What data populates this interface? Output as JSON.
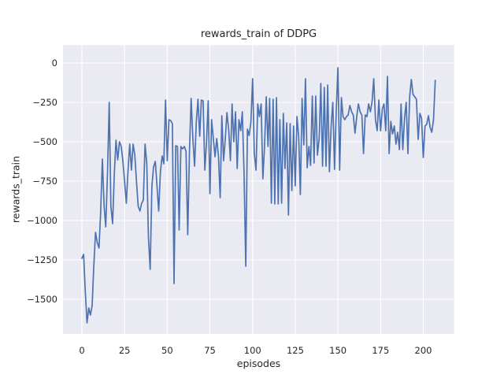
{
  "chart_data": {
    "type": "line",
    "title": "rewards_train of DDPG",
    "xlabel": "episodes",
    "ylabel": "rewards_train",
    "x_ticks": [
      0,
      25,
      50,
      75,
      100,
      125,
      150,
      175,
      200
    ],
    "y_ticks": [
      0,
      -250,
      -500,
      -750,
      -1000,
      -1250,
      -1500
    ],
    "xlim": [
      -11,
      218
    ],
    "ylim": [
      -1720,
      112
    ],
    "grid": true,
    "legend_position": "none",
    "line_color": "#4c72b0",
    "axes_background": "#eaeaf2",
    "grid_color": "#ffffff",
    "text_color": "#262626",
    "series": [
      {
        "name": "rewards_train",
        "x_start": 0,
        "x_step": 1,
        "values": [
          -1240,
          -1215,
          -1450,
          -1650,
          -1555,
          -1600,
          -1540,
          -1280,
          -1075,
          -1140,
          -1175,
          -950,
          -610,
          -910,
          -1040,
          -700,
          -250,
          -910,
          -1020,
          -700,
          -490,
          -615,
          -500,
          -530,
          -620,
          -750,
          -890,
          -690,
          -515,
          -680,
          -515,
          -585,
          -760,
          -910,
          -940,
          -890,
          -870,
          -515,
          -640,
          -1110,
          -1310,
          -780,
          -660,
          -625,
          -780,
          -940,
          -690,
          -590,
          -640,
          -235,
          -620,
          -360,
          -365,
          -385,
          -1400,
          -525,
          -530,
          -1060,
          -530,
          -545,
          -530,
          -560,
          -1090,
          -560,
          -225,
          -480,
          -655,
          -380,
          -230,
          -465,
          -235,
          -240,
          -680,
          -505,
          -240,
          -830,
          -360,
          -480,
          -595,
          -480,
          -590,
          -855,
          -335,
          -620,
          -480,
          -315,
          -425,
          -620,
          -260,
          -500,
          -310,
          -670,
          -360,
          -430,
          -310,
          -700,
          -1290,
          -420,
          -460,
          -375,
          -100,
          -575,
          -680,
          -260,
          -340,
          -260,
          -735,
          -530,
          -215,
          -530,
          -225,
          -890,
          -230,
          -895,
          -220,
          -895,
          -360,
          -890,
          -320,
          -670,
          -380,
          -965,
          -385,
          -810,
          -400,
          -780,
          -340,
          -470,
          -835,
          -225,
          -520,
          -100,
          -665,
          -530,
          -650,
          -210,
          -635,
          -210,
          -585,
          -480,
          -130,
          -655,
          -155,
          -655,
          -140,
          -690,
          -400,
          -250,
          -675,
          -300,
          -30,
          -680,
          -220,
          -340,
          -360,
          -340,
          -330,
          -270,
          -310,
          -330,
          -445,
          -340,
          -260,
          -310,
          -330,
          -575,
          -330,
          -340,
          -260,
          -310,
          -245,
          -100,
          -360,
          -430,
          -235,
          -430,
          -290,
          -260,
          -430,
          -85,
          -575,
          -370,
          -450,
          -400,
          -515,
          -440,
          -550,
          -260,
          -550,
          -350,
          -250,
          -575,
          -215,
          -105,
          -200,
          -215,
          -230,
          -485,
          -320,
          -350,
          -600,
          -400,
          -390,
          -335,
          -410,
          -440,
          -360,
          -110
        ]
      }
    ]
  }
}
